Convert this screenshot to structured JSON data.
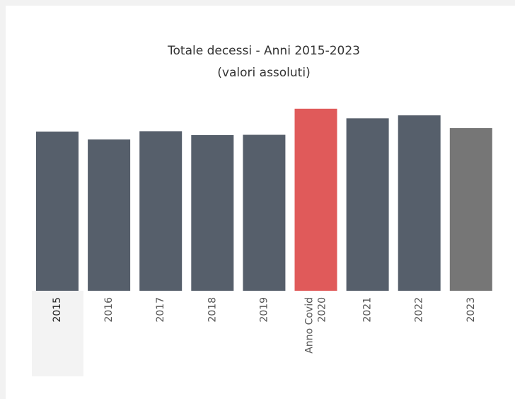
{
  "chart_data": {
    "type": "bar",
    "title": [
      "Totale decessi - Anni 2015-2023",
      "(valori assoluti)"
    ],
    "categories": [
      "2015",
      "2016",
      "2017",
      "2018",
      "2019",
      [
        "Anno Covid",
        "2020"
      ],
      "2021",
      "2022",
      "2023"
    ],
    "values": [
      647571,
      615261,
      649061,
      633133,
      634417,
      740317,
      701346,
      713499,
      661711
    ],
    "colors": [
      "#565f6b",
      "#565f6b",
      "#565f6b",
      "#565f6b",
      "#565f6b",
      "#e05a5a",
      "#565f6b",
      "#565f6b",
      "#767676"
    ],
    "ylim": [
      0,
      800000
    ],
    "selected": "2015"
  }
}
